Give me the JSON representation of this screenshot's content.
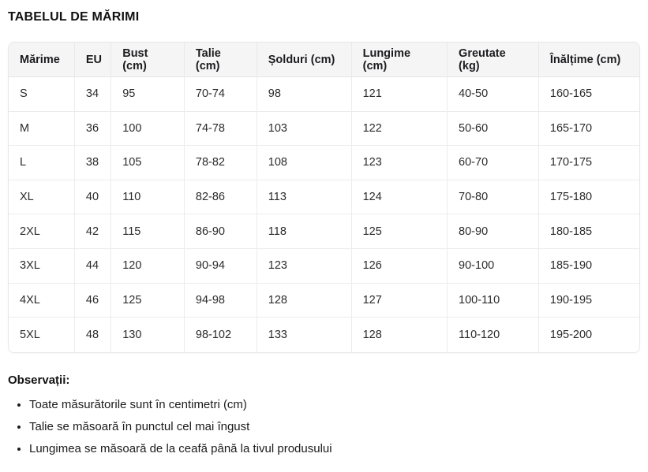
{
  "title": "TABELUL DE MĂRIMI",
  "table": {
    "headers": [
      "Mărime",
      "EU",
      "Bust (cm)",
      "Talie (cm)",
      "Șolduri (cm)",
      "Lungime (cm)",
      "Greutate (kg)",
      "Înălțime (cm)"
    ],
    "rows": [
      [
        "S",
        "34",
        "95",
        "70-74",
        "98",
        "121",
        "40-50",
        "160-165"
      ],
      [
        "M",
        "36",
        "100",
        "74-78",
        "103",
        "122",
        "50-60",
        "165-170"
      ],
      [
        "L",
        "38",
        "105",
        "78-82",
        "108",
        "123",
        "60-70",
        "170-175"
      ],
      [
        "XL",
        "40",
        "110",
        "82-86",
        "113",
        "124",
        "70-80",
        "175-180"
      ],
      [
        "2XL",
        "42",
        "115",
        "86-90",
        "118",
        "125",
        "80-90",
        "180-185"
      ],
      [
        "3XL",
        "44",
        "120",
        "90-94",
        "123",
        "126",
        "90-100",
        "185-190"
      ],
      [
        "4XL",
        "46",
        "125",
        "94-98",
        "128",
        "127",
        "100-110",
        "190-195"
      ],
      [
        "5XL",
        "48",
        "130",
        "98-102",
        "133",
        "128",
        "110-120",
        "195-200"
      ]
    ]
  },
  "notes": {
    "title": "Observații:",
    "items": [
      "Toate măsurătorile sunt în centimetri (cm)",
      "Talie se măsoară în punctul cel mai îngust",
      "Lungimea se măsoară de la ceafă până la tivul produsului"
    ]
  },
  "colors": {
    "header_bg": "#f5f5f6",
    "border": "#ececee",
    "text": "#1f1f1f"
  }
}
